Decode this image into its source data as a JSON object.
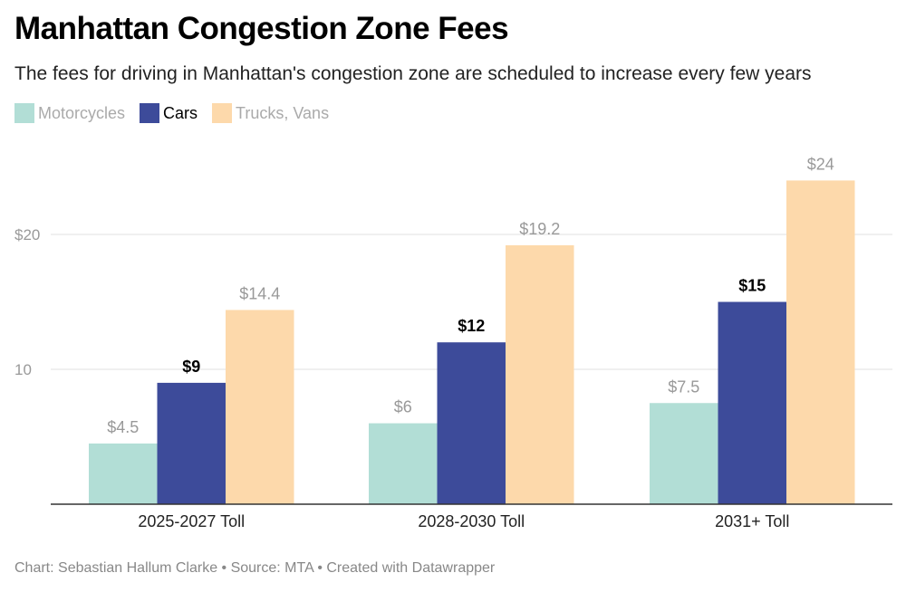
{
  "colors": {
    "motorcycles": "#b2ded6",
    "cars": "#3d4b9a",
    "trucks": "#fdd9ab",
    "label_light": "#999999",
    "label_dark": "#000000"
  },
  "chart_data": {
    "type": "bar",
    "title": "Manhattan Congestion Zone Fees",
    "subtitle": "The fees for driving in Manhattan's congestion zone are scheduled to increase every few years",
    "categories": [
      "2025-2027 Toll",
      "2028-2030 Toll",
      "2031+ Toll"
    ],
    "series": [
      {
        "name": "Motorcycles",
        "values": [
          4.5,
          6,
          7.5
        ],
        "labels": [
          "$4.5",
          "$6",
          "$7.5"
        ],
        "color": "#b2ded6"
      },
      {
        "name": "Cars",
        "values": [
          9,
          12,
          15
        ],
        "labels": [
          "$9",
          "$12",
          "$15"
        ],
        "color": "#3d4b9a"
      },
      {
        "name": "Trucks, Vans",
        "values": [
          14.4,
          19.2,
          24
        ],
        "labels": [
          "$14.4",
          "$19.2",
          "$24"
        ],
        "color": "#fdd9ab"
      }
    ],
    "yticks": [
      {
        "value": 10,
        "label": "10"
      },
      {
        "value": 20,
        "label": "$20"
      }
    ],
    "ylim": [
      0,
      26
    ],
    "xlabel": "",
    "ylabel": "",
    "grid": true,
    "legend_position": "top-left"
  },
  "footer": "Chart: Sebastian Hallum Clarke • Source: MTA • Created with Datawrapper"
}
